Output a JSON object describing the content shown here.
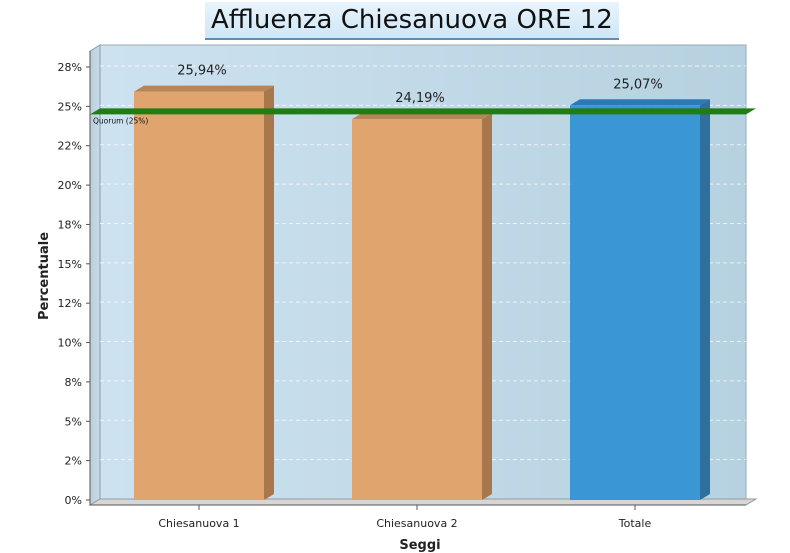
{
  "title": "Affluenza Chiesanuova ORE 12",
  "chart_data": {
    "type": "bar",
    "title": "Affluenza Chiesanuova ORE 12",
    "xlabel": "Seggi",
    "ylabel": "Percentuale",
    "categories": [
      "Chiesanuova 1",
      "Chiesanuova 2",
      "Totale"
    ],
    "values": [
      25.94,
      24.19,
      25.07
    ],
    "value_labels": [
      "25,94%",
      "24,19%",
      "25,07%"
    ],
    "bar_colors": [
      "#e0a46f",
      "#e0a46f",
      "#3a96d4"
    ],
    "yticks": [
      0,
      2.5,
      5,
      7.5,
      10,
      12.5,
      15,
      17.5,
      20,
      22.5,
      25,
      27.5
    ],
    "ytick_labels": [
      "0%",
      "2%",
      "5%",
      "8%",
      "10%",
      "12%",
      "15%",
      "18%",
      "20%",
      "22%",
      "25%",
      "28%"
    ],
    "ylim": [
      0,
      27.5
    ],
    "reference_line": {
      "label": "Quorum (25%)",
      "value": 25,
      "color": "#1f7d12"
    },
    "grid": true,
    "style": "3d"
  }
}
